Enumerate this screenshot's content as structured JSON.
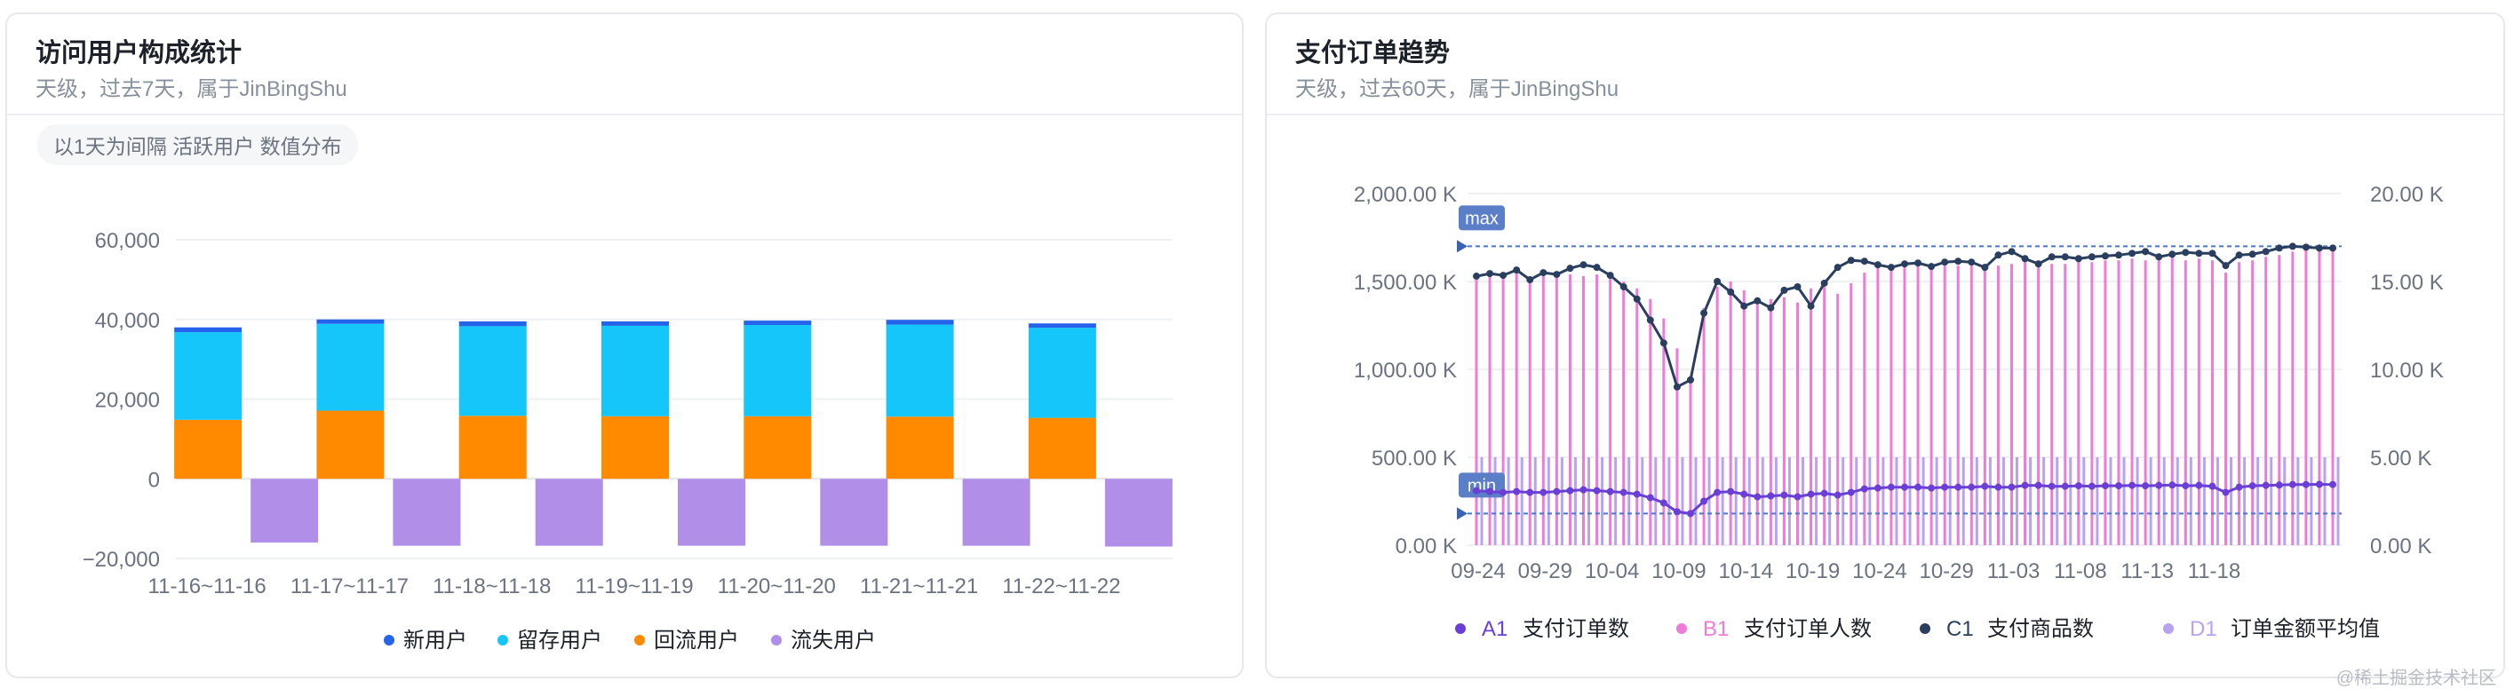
{
  "card1": {
    "title": "访问用户构成统计",
    "subtitle": "天级，过去7天，属于JinBingShu",
    "chip": "以1天为间隔 活跃用户 数值分布"
  },
  "card2": {
    "title": "支付订单趋势",
    "subtitle": "天级，过去60天，属于JinBingShu"
  },
  "watermark": "@稀土掘金技术社区",
  "chart_data": [
    {
      "type": "bar",
      "stacked": true,
      "categories": [
        "11-16~11-16",
        "11-17~11-17",
        "11-18~11-18",
        "11-19~11-19",
        "11-20~11-20",
        "11-21~11-21",
        "11-22~11-22"
      ],
      "ylim": [
        -20000,
        60000
      ],
      "yticks": [
        -20000,
        0,
        20000,
        40000,
        60000
      ],
      "ytick_labels": [
        "−20,000",
        "0",
        "20,000",
        "40,000",
        "60,000"
      ],
      "series": [
        {
          "name": "新用户",
          "color": "#2563eb",
          "values": [
            1200,
            1100,
            1200,
            1100,
            1100,
            1200,
            1100
          ]
        },
        {
          "name": "留存用户",
          "color": "#14c6fa",
          "values": [
            22000,
            21800,
            22500,
            22700,
            22900,
            23100,
            22600
          ]
        },
        {
          "name": "回流用户",
          "color": "#ff8a00",
          "values": [
            14800,
            17100,
            15800,
            15700,
            15700,
            15600,
            15300
          ]
        },
        {
          "name": "流失用户",
          "color": "#b18ee8",
          "values": [
            -16000,
            -16800,
            -16800,
            -16800,
            -16800,
            -16800,
            -17000
          ]
        }
      ],
      "legend_position": "bottom"
    },
    {
      "type": "line",
      "dual_axis": true,
      "x_labels": [
        "09-24",
        "09-29",
        "10-04",
        "10-09",
        "10-14",
        "10-19",
        "10-24",
        "10-29",
        "11-03",
        "11-08",
        "11-13",
        "11-18"
      ],
      "left_axis": {
        "range": [
          0,
          2000000
        ],
        "ticks": [
          "0.00 K",
          "500.00 K",
          "1,000.00 K",
          "1,500.00 K",
          "2,000.00 K"
        ]
      },
      "right_axis": {
        "range": [
          0,
          20000
        ],
        "ticks": [
          "0.00 K",
          "5.00 K",
          "10.00 K",
          "15.00 K",
          "20.00 K"
        ]
      },
      "markers": {
        "max_label": "max",
        "min_label": "min",
        "max_value": 1700000,
        "min_value": 180000
      },
      "series": [
        {
          "name": "支付订单数",
          "prefix": "A1",
          "color": "#6b3fd6",
          "axis": "left",
          "style": "line",
          "values": [
            310000,
            305000,
            300000,
            305000,
            300000,
            300000,
            305000,
            310000,
            315000,
            310000,
            305000,
            300000,
            290000,
            270000,
            240000,
            190000,
            180000,
            250000,
            300000,
            305000,
            290000,
            275000,
            280000,
            285000,
            275000,
            290000,
            295000,
            285000,
            300000,
            320000,
            325000,
            330000,
            330000,
            330000,
            325000,
            330000,
            330000,
            330000,
            335000,
            330000,
            330000,
            340000,
            340000,
            335000,
            335000,
            338000,
            335000,
            338000,
            338000,
            340000,
            338000,
            340000,
            342000,
            338000,
            340000,
            335000,
            300000,
            330000,
            338000,
            340000,
            342000,
            345000,
            345000,
            346000,
            345000
          ]
        },
        {
          "name": "支付订单人数",
          "prefix": "B1",
          "color": "#f07ad8",
          "axis": "right",
          "style": "bar",
          "values": [
            15100,
            15300,
            15200,
            15500,
            15000,
            15300,
            15200,
            15400,
            15300,
            15400,
            15200,
            15000,
            14600,
            14000,
            12900,
            11200,
            9300,
            13500,
            14700,
            15000,
            14500,
            13900,
            14000,
            14100,
            13800,
            14600,
            14700,
            14300,
            14900,
            15500,
            15800,
            15900,
            15800,
            15900,
            15900,
            15900,
            15900,
            15900,
            16000,
            15900,
            16000,
            16200,
            16200,
            16000,
            16000,
            16200,
            16100,
            16200,
            16200,
            16300,
            16200,
            16300,
            16400,
            16200,
            16300,
            16200,
            15500,
            16100,
            16200,
            16400,
            16500,
            16700,
            16800,
            16800,
            16800
          ]
        },
        {
          "name": "支付商品数",
          "prefix": "C1",
          "color": "#2a3f5f",
          "axis": "left",
          "style": "line",
          "values": [
            1530000,
            1545000,
            1535000,
            1565000,
            1510000,
            1550000,
            1540000,
            1575000,
            1595000,
            1580000,
            1535000,
            1470000,
            1400000,
            1280000,
            1150000,
            900000,
            940000,
            1320000,
            1500000,
            1440000,
            1360000,
            1390000,
            1350000,
            1450000,
            1470000,
            1360000,
            1490000,
            1580000,
            1620000,
            1615000,
            1595000,
            1580000,
            1600000,
            1605000,
            1585000,
            1610000,
            1615000,
            1610000,
            1580000,
            1650000,
            1670000,
            1630000,
            1600000,
            1640000,
            1640000,
            1630000,
            1640000,
            1645000,
            1650000,
            1660000,
            1670000,
            1640000,
            1655000,
            1665000,
            1660000,
            1660000,
            1590000,
            1650000,
            1655000,
            1670000,
            1690000,
            1700000,
            1695000,
            1690000,
            1690000
          ]
        },
        {
          "name": "订单金额平均值",
          "prefix": "D1",
          "color": "#b8a3f0",
          "axis": "right",
          "style": "bar",
          "values": [
            5000
          ]
        }
      ],
      "legend_position": "bottom"
    }
  ]
}
